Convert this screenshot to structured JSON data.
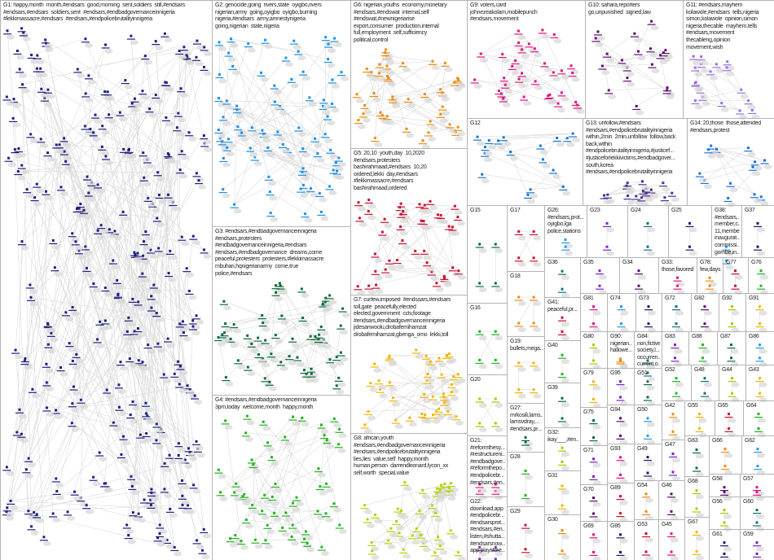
{
  "groups": [
    {
      "id": "G1",
      "label": "G1: happy,month  month,#endsars  good,morning  sent,soldiers  still,#endsars\n#endsars,#endsars  soldiers,sent  #endsars,#endbadgovernanceinnigeria\n#lekkimassacre,#endsars  #endsars,#endpolicebrutalityinnigeria",
      "color": "#1f1f80"
    },
    {
      "id": "G2",
      "label": "G2: genocide,going  rivers,state  oyigbo,rivers\nnigerian,army  going,oyigbo  oyigbo,burning\nnigeria,#endsars  army,amnestynigeria\ngoing,nigerian  state,nigeria",
      "color": "#1e8fe6"
    },
    {
      "id": "G3",
      "label": "G3: #endsars,#endbadgovernanceinnigeria\n#endsars,protesters\n#endbadgovernanceinnigeria,#endsars\n#endsars,#endbadgovernance  dreams,come\npeaceful,protesters  protesters,#lekkimassacre\nmbuhari,hqnigerianarmy  come,true\npolice,#endsars",
      "color": "#0b6b3a"
    },
    {
      "id": "G4",
      "label": "G4: #endsars,#endbadgovernanceinnigeria\n3pm,today  welcome,month  happy,month",
      "color": "#22b322"
    },
    {
      "id": "G5",
      "label": "G5: 20,10  youth,day  10,2020\n#endsars,protesters\nbashirahmaad,#endsars  10,20\nordered,lekki  day,#endsars\n#lekkimassacre,#endsars\nbashirahmaad,ordered",
      "color": "#cc1030"
    },
    {
      "id": "G6",
      "label": "G6: nigerian,youths  economy,monetary\n#endsars,#endswat  internal,self\n#endswat,#newnigeriarise\nexport,consumer  production,internal\nfull,employment  self,sufficiency\npolitical,control",
      "color": "#ee8a10"
    },
    {
      "id": "G7",
      "label": "G7: curfew,imposed  #endssars,#endsars\ntoll,gate  peacefully,elected\nelected,government  cctv,footage\n#endsars,#endbadgovernanceinnigeria\njidesanwoolu,drobafemihamzat\ndrobafemihamzat,gbenga_omo  lekki,toll",
      "color": "#f2b600"
    },
    {
      "id": "G8",
      "label": "G8: african,youth\n#endsars,#endbadgovernanceinnigeria\n#endsars,#endpolicebrutalityinnigeria\nlies,lies  value,self  happy,month\nhuman,person  darrendleonard,lycon_xx\nself,worth  special,value",
      "color": "#b8d200"
    },
    {
      "id": "G9",
      "label": "G9: voters,card\njohnezeakolam,mobilepunch\n#endsars,movement",
      "color": "#e0157e"
    },
    {
      "id": "G10",
      "label": "G10: sahara,reporters\ngo,unpunished  signed,law",
      "color": "#5b0f6b"
    },
    {
      "id": "G11",
      "label": "G11: #endsars,mayhem\nkolawole,#endsars  tells,nigeria\nsimon,kolawole  opinion,simon\nnigeria,thecable  mayhem,tells\n#endsars,movement\nthecableng,opinion\nmovement,wish",
      "color": "#9a6ee0"
    },
    {
      "id": "G12",
      "label": "G12",
      "color": "#1976d2"
    },
    {
      "id": "G13",
      "label": "G13: unfollow,#endsars\n#endsars,#endpolicebrutalityinnigeria\nwithin,2min  2min,unfollow  follow,back\nback,within\n#endpolicebrutalityinnigeria,#justicef...\n#justiceforlekkivictims,#endbadgover...\nsouth,korea\n#endsars,#endpolicebrutalityinnigeria",
      "color": "#4a3090"
    },
    {
      "id": "G14",
      "label": "G14: 20,those  those,attended\n#endsars,protest",
      "color": "#1a6fe0"
    },
    {
      "id": "G15",
      "label": "G15",
      "color": "#0b6b3a"
    },
    {
      "id": "G16",
      "label": "G16",
      "color": "#22b322"
    },
    {
      "id": "G17",
      "label": "G17",
      "color": "#cc1030"
    },
    {
      "id": "G18",
      "label": "G18",
      "color": "#ee8a10"
    },
    {
      "id": "G19",
      "label": "G19:\nbullets,mega...",
      "color": "#f2b600"
    },
    {
      "id": "G20",
      "label": "G20",
      "color": "#a8c800"
    },
    {
      "id": "G21",
      "label": "G21:\n#reformthesy...\n#restructureni...\n#endbadgove...\n#reformthepo...\n#endpolicebr...\n#endsars,#en...",
      "color": "#e0157e"
    },
    {
      "id": "G22",
      "label": "G22:\ndownload,app\n#endpolicebr...\n#endsarsprot...\n#endsars,#en...\nlisten,#shutta...\n#endsarsnow...\napp,playstore...",
      "color": "#7a3aa0"
    },
    {
      "id": "G23",
      "label": "G23",
      "color": "#7a22c8"
    },
    {
      "id": "G24",
      "label": "G24",
      "color": "#176e78"
    },
    {
      "id": "G25",
      "label": "G25",
      "color": "#1a1a70"
    },
    {
      "id": "G26",
      "label": "G26:\n#endsars,prot...\noyigbo,lga\npolice,stations",
      "color": "#2a9ae8"
    },
    {
      "id": "G27",
      "label": "G27:\nmrkosili,lams...\nlamsvdray,...\n#endsars,pr...",
      "color": "#0b6b3a"
    },
    {
      "id": "G28",
      "label": "G28",
      "color": "#22b322"
    },
    {
      "id": "G29",
      "label": "G29",
      "color": "#cc1030"
    },
    {
      "id": "G30",
      "label": "G30",
      "color": "#ee8a10"
    },
    {
      "id": "G31",
      "label": "G31",
      "color": "#f2b600"
    },
    {
      "id": "G32",
      "label": "G32:\nikay___,#en...",
      "color": "#a8c800"
    },
    {
      "id": "G33",
      "label": "G33:\nthose,favored  few,days",
      "color": "#e0157e"
    },
    {
      "id": "G34",
      "label": "G34",
      "color": "#5b0f6b"
    },
    {
      "id": "G35",
      "label": "G35",
      "color": "#7a22c8"
    },
    {
      "id": "G36",
      "label": "G36",
      "color": "#176e78"
    },
    {
      "id": "G37",
      "label": "G37",
      "color": "#1a1a70"
    },
    {
      "id": "G38",
      "label": "G38:\n#endsars,...\nmember,c...\n11,member\ninaugurat...\ncommissi...\ngombe,in...",
      "color": "#2a9ae8"
    },
    {
      "id": "G39",
      "label": "G39",
      "color": "#0b6b3a"
    },
    {
      "id": "G40",
      "label": "G40",
      "color": "#22b322"
    },
    {
      "id": "G41",
      "label": "G41:\npeaceful,pr...",
      "color": "#cc1030"
    },
    {
      "id": "G42",
      "label": "G42",
      "color": "#ee8a10"
    },
    {
      "id": "G43",
      "label": "G43",
      "color": "#f2b600"
    },
    {
      "id": "G44",
      "label": "G44",
      "color": "#a8c800"
    },
    {
      "id": "G45",
      "label": "G45",
      "color": "#e0157e"
    },
    {
      "id": "G46",
      "label": "G46",
      "color": "#5b0f6b"
    },
    {
      "id": "G47",
      "label": "G47",
      "color": "#7a22c8"
    },
    {
      "id": "G48",
      "label": "G48",
      "color": "#176e78"
    },
    {
      "id": "G49",
      "label": "G49",
      "color": "#1a1a70"
    },
    {
      "id": "G50",
      "label": "G50",
      "color": "#2a9ae8"
    },
    {
      "id": "G51",
      "label": "G51",
      "color": "#0b6b3a"
    },
    {
      "id": "G52",
      "label": "G52",
      "color": "#22b322"
    },
    {
      "id": "G53",
      "label": "G53",
      "color": "#cc1030"
    },
    {
      "id": "G54",
      "label": "G54",
      "color": "#ee8a10"
    },
    {
      "id": "G55",
      "label": "G55",
      "color": "#f2b600"
    },
    {
      "id": "G56",
      "label": "G56",
      "color": "#a8c800"
    },
    {
      "id": "G57",
      "label": "G57",
      "color": "#e0157e"
    },
    {
      "id": "G58",
      "label": "G58",
      "color": "#5b0f6b"
    },
    {
      "id": "G59",
      "label": "G59",
      "color": "#7a22c8"
    },
    {
      "id": "G60",
      "label": "G60",
      "color": "#176e78"
    },
    {
      "id": "G61",
      "label": "G61",
      "color": "#1a1a70"
    },
    {
      "id": "G62",
      "label": "G62",
      "color": "#2a9ae8"
    },
    {
      "id": "G63",
      "label": "G63",
      "color": "#0b6b3a"
    },
    {
      "id": "G64",
      "label": "G64",
      "color": "#22b322"
    },
    {
      "id": "G65",
      "label": "G65",
      "color": "#cc1030"
    },
    {
      "id": "G66",
      "label": "G66",
      "color": "#ee8a10"
    },
    {
      "id": "G67",
      "label": "G67",
      "color": "#f2b600"
    },
    {
      "id": "G68",
      "label": "G68",
      "color": "#a8c800"
    },
    {
      "id": "G69",
      "label": "G69",
      "color": "#e0157e"
    },
    {
      "id": "G70",
      "label": "G70",
      "color": "#5b0f6b"
    },
    {
      "id": "G71",
      "label": "G71",
      "color": "#7a22c8"
    },
    {
      "id": "G72",
      "label": "G72",
      "color": "#176e78"
    },
    {
      "id": "G73",
      "label": "G73",
      "color": "#1a1a70"
    },
    {
      "id": "G74",
      "label": "G74",
      "color": "#2a9ae8"
    },
    {
      "id": "G75",
      "label": "G75",
      "color": "#0b6b3a"
    },
    {
      "id": "G76",
      "label": "G76",
      "color": "#22b322"
    },
    {
      "id": "G77",
      "label": "G77",
      "color": "#cc1030"
    },
    {
      "id": "G78",
      "label": "G78:\nfew,days",
      "color": "#ee8a10"
    },
    {
      "id": "G79",
      "label": "G79",
      "color": "#f2b600"
    },
    {
      "id": "G80",
      "label": "G80",
      "color": "#a8c800"
    },
    {
      "id": "G81",
      "label": "G81",
      "color": "#e0157e"
    },
    {
      "id": "G82",
      "label": "G82",
      "color": "#5b0f6b"
    },
    {
      "id": "G83",
      "label": "G83",
      "color": "#7a22c8"
    },
    {
      "id": "G84",
      "label": "G84:\nnon,fictive\nsociety,l...\noccurren...\ncurrent,o...",
      "color": "#176e78"
    },
    {
      "id": "G85",
      "label": "G85",
      "color": "#1a1a70"
    },
    {
      "id": "G86",
      "label": "G86",
      "color": "#2a9ae8"
    },
    {
      "id": "G87",
      "label": "G87",
      "color": "#0b6b3a"
    },
    {
      "id": "G88",
      "label": "G88",
      "color": "#22b322"
    },
    {
      "id": "G89",
      "label": "G89",
      "color": "#cc1030"
    },
    {
      "id": "G90",
      "label": "G90:\nnigerian...\nhallowe...",
      "color": "#ee8a10"
    },
    {
      "id": "G91",
      "label": "G91",
      "color": "#f2b600"
    },
    {
      "id": "G92",
      "label": "G92",
      "color": "#a8c800"
    },
    {
      "id": "G93",
      "label": "G93",
      "color": "#e0157e"
    },
    {
      "id": "G94",
      "label": "G94",
      "color": "#5b0f6b"
    },
    {
      "id": "G95",
      "label": "G95",
      "color": "#7a22c8"
    }
  ]
}
